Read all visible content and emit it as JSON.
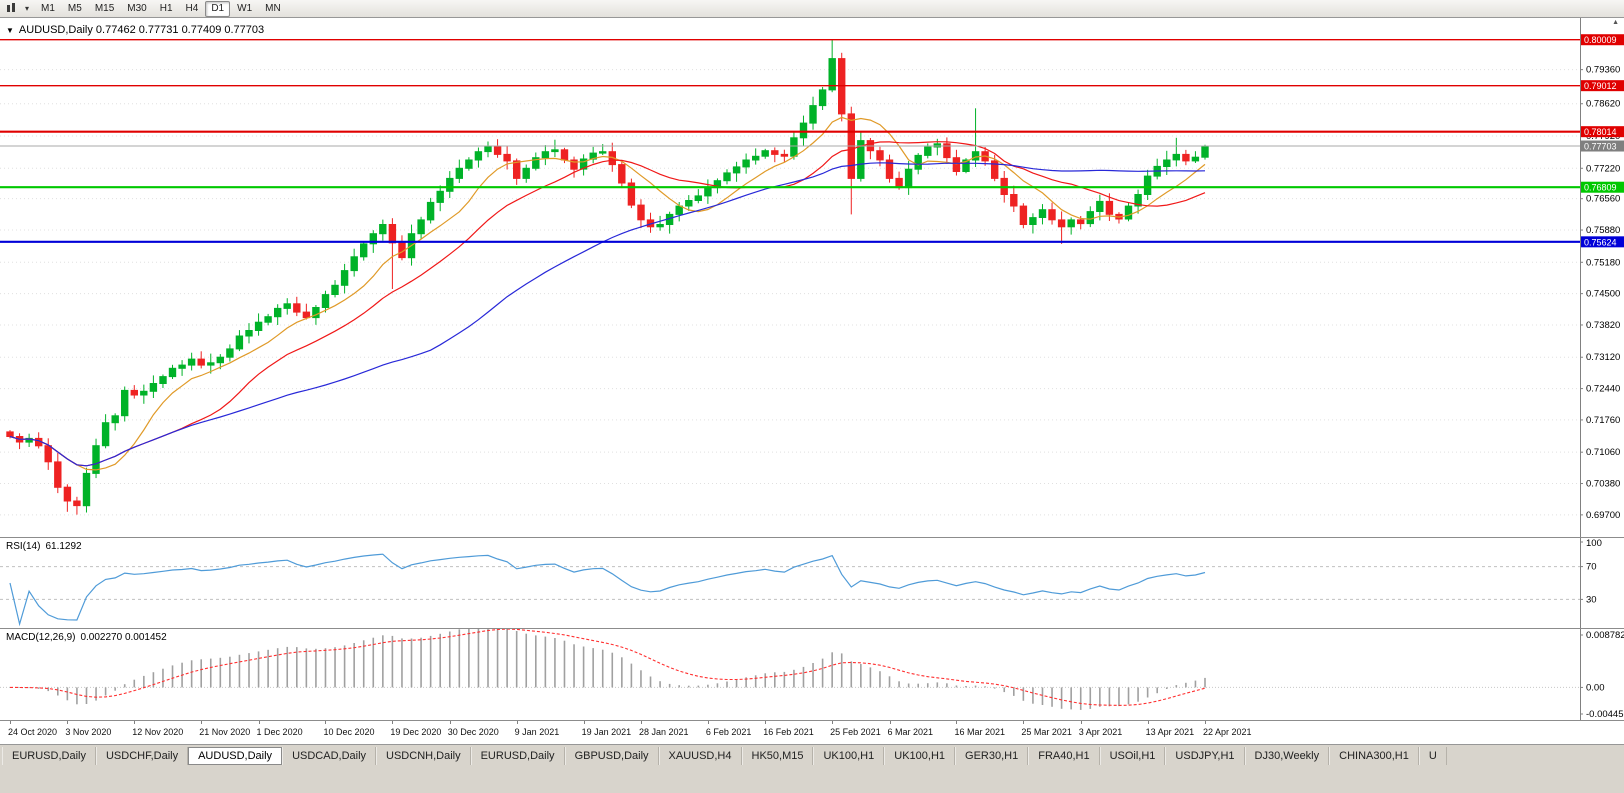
{
  "icons": {
    "chart_type": "candlestick",
    "dropdown_caret": "▾",
    "collapse_triangle": "▼",
    "scale_arrow": "▲"
  },
  "colors": {
    "candle_up": "#00b228",
    "candle_down": "#ee2222",
    "grid": "#e0e0e0",
    "axis_border": "#808080",
    "axis_text": "#000000"
  },
  "toolbar": {
    "timeframes": [
      {
        "label": "M1",
        "active": false
      },
      {
        "label": "M5",
        "active": false
      },
      {
        "label": "M15",
        "active": false
      },
      {
        "label": "M30",
        "active": false
      },
      {
        "label": "H1",
        "active": false
      },
      {
        "label": "H4",
        "active": false
      },
      {
        "label": "D1",
        "active": true
      },
      {
        "label": "W1",
        "active": false
      },
      {
        "label": "MN",
        "active": false
      }
    ]
  },
  "chart_header": {
    "title": "AUDUSD,Daily 0.77462 0.77731 0.77409 0.77703"
  },
  "rsi": {
    "name": "RSI(14)",
    "value": "61.1292",
    "period": 14,
    "levels": [
      "100",
      "70",
      "30"
    ],
    "line_color": "#4f9bd8",
    "level_line_color": "#c0c0c0"
  },
  "macd": {
    "name": "MACD(12,26,9)",
    "values": "0.002270 0.001452",
    "fast": 12,
    "slow": 26,
    "signal": 9,
    "axis_labels": [
      "0.008782",
      "0.00",
      "-0.004451"
    ],
    "hist_color": "#a0a0a0",
    "signal_color": "#ff3030",
    "zero_line_color": "#c8c8c8"
  },
  "chart_data": {
    "type": "candlestick",
    "symbol": "AUDUSD",
    "timeframe": "Daily",
    "ohlc_current": {
      "open": 0.77462,
      "high": 0.77731,
      "low": 0.77409,
      "close": 0.77703
    },
    "first_open": 0.715,
    "closes": [
      0.714,
      0.7128,
      0.7136,
      0.712,
      0.7085,
      0.703,
      0.7,
      0.699,
      0.706,
      0.712,
      0.717,
      0.7185,
      0.724,
      0.723,
      0.7238,
      0.7255,
      0.727,
      0.7288,
      0.7295,
      0.7308,
      0.7295,
      0.73,
      0.7312,
      0.733,
      0.7358,
      0.737,
      0.7388,
      0.74,
      0.7418,
      0.7428,
      0.741,
      0.7398,
      0.742,
      0.7448,
      0.7468,
      0.75,
      0.753,
      0.7558,
      0.758,
      0.76,
      0.756,
      0.7528,
      0.758,
      0.761,
      0.7648,
      0.7672,
      0.77,
      0.7722,
      0.774,
      0.7758,
      0.777,
      0.7752,
      0.7738,
      0.77,
      0.7722,
      0.7745,
      0.7758,
      0.7762,
      0.774,
      0.772,
      0.7742,
      0.7755,
      0.7758,
      0.773,
      0.769,
      0.7642,
      0.761,
      0.7595,
      0.76,
      0.7622,
      0.764,
      0.7652,
      0.7662,
      0.768,
      0.7695,
      0.7712,
      0.7725,
      0.774,
      0.7748,
      0.776,
      0.7752,
      0.7748,
      0.7788,
      0.782,
      0.7858,
      0.7892,
      0.796,
      0.784,
      0.77,
      0.7782,
      0.776,
      0.774,
      0.77,
      0.768,
      0.772,
      0.775,
      0.7768,
      0.7775,
      0.7745,
      0.7715,
      0.774,
      0.7758,
      0.7738,
      0.77,
      0.7665,
      0.764,
      0.76,
      0.7615,
      0.7632,
      0.761,
      0.7595,
      0.761,
      0.7602,
      0.7628,
      0.765,
      0.7622,
      0.7612,
      0.764,
      0.7665,
      0.7705,
      0.7726,
      0.774,
      0.7752,
      0.7738,
      0.7746,
      0.77703
    ],
    "high_overrides": {
      "50": 0.778,
      "57": 0.7784,
      "86": 0.80009,
      "101": 0.7852,
      "122": 0.7788,
      "125": 0.77731
    },
    "low_overrides": {
      "6": 0.69766,
      "40": 0.746,
      "88": 0.7622,
      "110": 0.7558,
      "125": 0.77409
    },
    "moving_averages": [
      {
        "name": "ma-fast",
        "period": 8,
        "color": "#e09a28"
      },
      {
        "name": "ma-mid",
        "period": 18,
        "color": "#f01818"
      },
      {
        "name": "ma-slow",
        "period": 45,
        "color": "#2828d8"
      }
    ],
    "hlines": [
      {
        "price": "0.80009",
        "color": "#e00000",
        "width": 1.4
      },
      {
        "price": "0.79012",
        "color": "#e00000",
        "width": 1.4
      },
      {
        "price": "0.78014",
        "color": "#e00000",
        "width": 2.2
      },
      {
        "price": "0.76809",
        "color": "#00c800",
        "width": 2.2
      },
      {
        "price": "0.75624",
        "color": "#0000d8",
        "width": 2.2
      }
    ],
    "bid": {
      "price": "0.77703",
      "line_color": "#a8a8a8",
      "box_color": "#7f7f7f"
    },
    "y_axis_ticks": [
      "0.79360",
      "0.78620",
      "0.77920",
      "0.77220",
      "0.76560",
      "0.75880",
      "0.75180",
      "0.74500",
      "0.73820",
      "0.73120",
      "0.72440",
      "0.71760",
      "0.71060",
      "0.70380",
      "0.69700"
    ],
    "time_axis": {
      "labels": [
        [
          "24 Oct 2020",
          0
        ],
        [
          "3 Nov 2020",
          6
        ],
        [
          "12 Nov 2020",
          13
        ],
        [
          "21 Nov 2020",
          20
        ],
        [
          "1 Dec 2020",
          26
        ],
        [
          "10 Dec 2020",
          33
        ],
        [
          "19 Dec 2020",
          40
        ],
        [
          "30 Dec 2020",
          46
        ],
        [
          "9 Jan 2021",
          53
        ],
        [
          "19 Jan 2021",
          60
        ],
        [
          "28 Jan 2021",
          66
        ],
        [
          "6 Feb 2021",
          73
        ],
        [
          "16 Feb 2021",
          79
        ],
        [
          "25 Feb 2021",
          86
        ],
        [
          "6 Mar 2021",
          92
        ],
        [
          "16 Mar 2021",
          99
        ],
        [
          "25 Mar 2021",
          106
        ],
        [
          "3 Apr 2021",
          112
        ],
        [
          "13 Apr 2021",
          119
        ],
        [
          "22 Apr 2021",
          125
        ]
      ]
    }
  },
  "tabs": [
    {
      "label": "EURUSD,Daily",
      "active": false
    },
    {
      "label": "USDCHF,Daily",
      "active": false
    },
    {
      "label": "AUDUSD,Daily",
      "active": true
    },
    {
      "label": "USDCAD,Daily",
      "active": false
    },
    {
      "label": "USDCNH,Daily",
      "active": false
    },
    {
      "label": "EURUSD,Daily",
      "active": false
    },
    {
      "label": "GBPUSD,Daily",
      "active": false
    },
    {
      "label": "XAUUSD,H4",
      "active": false
    },
    {
      "label": "HK50,M15",
      "active": false
    },
    {
      "label": "UK100,H1",
      "active": false
    },
    {
      "label": "UK100,H1",
      "active": false
    },
    {
      "label": "GER30,H1",
      "active": false
    },
    {
      "label": "FRA40,H1",
      "active": false
    },
    {
      "label": "USOil,H1",
      "active": false
    },
    {
      "label": "USDJPY,H1",
      "active": false
    },
    {
      "label": "DJ30,Weekly",
      "active": false
    },
    {
      "label": "CHINA300,H1",
      "active": false
    },
    {
      "label": "U",
      "active": false
    }
  ]
}
